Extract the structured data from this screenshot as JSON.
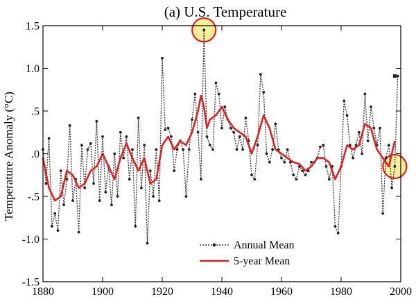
{
  "chart_data": {
    "type": "line",
    "title": "(a)  U.S. Temperature",
    "xlabel": "",
    "ylabel": "Temperature Anomaly (°C)",
    "xlim": [
      1880,
      2000
    ],
    "ylim": [
      -1.5,
      1.5
    ],
    "x_ticks": [
      1880,
      1900,
      1920,
      1940,
      1960,
      1980,
      2000
    ],
    "x_tick_labels": [
      "1880",
      "1900",
      "1920",
      "1940",
      "1960",
      "1980",
      "2000"
    ],
    "y_ticks": [
      1.5,
      1.0,
      0.5,
      0.0,
      -0.5,
      -1.0,
      -1.5
    ],
    "y_tick_labels": [
      "1.5",
      "1.0",
      ".5",
      ".0",
      "-.5",
      "-1.0",
      "-1.5"
    ],
    "legend_position": "bottom-center",
    "highlighted_years": [
      1934,
      1998
    ],
    "colors": {
      "annual": "#333333",
      "five_year": "#e02020",
      "highlight_fill": "#f5ee9a",
      "highlight_stroke": "#e02020"
    },
    "series": [
      {
        "name": "Annual Mean",
        "style": "dotted-with-markers",
        "x": [
          1880,
          1881,
          1882,
          1883,
          1884,
          1885,
          1886,
          1887,
          1888,
          1889,
          1890,
          1891,
          1892,
          1893,
          1894,
          1895,
          1896,
          1897,
          1898,
          1899,
          1900,
          1901,
          1902,
          1903,
          1904,
          1905,
          1906,
          1907,
          1908,
          1909,
          1910,
          1911,
          1912,
          1913,
          1914,
          1915,
          1916,
          1917,
          1918,
          1919,
          1920,
          1921,
          1922,
          1923,
          1924,
          1925,
          1926,
          1927,
          1928,
          1929,
          1930,
          1931,
          1932,
          1933,
          1934,
          1935,
          1936,
          1937,
          1938,
          1939,
          1940,
          1941,
          1942,
          1943,
          1944,
          1945,
          1946,
          1947,
          1948,
          1949,
          1950,
          1951,
          1952,
          1953,
          1954,
          1955,
          1956,
          1957,
          1958,
          1959,
          1960,
          1961,
          1962,
          1963,
          1964,
          1965,
          1966,
          1967,
          1968,
          1969,
          1970,
          1971,
          1972,
          1973,
          1974,
          1975,
          1976,
          1977,
          1978,
          1979,
          1980,
          1981,
          1982,
          1983,
          1984,
          1985,
          1986,
          1987,
          1988,
          1989,
          1990,
          1991,
          1992,
          1993,
          1994,
          1995,
          1996,
          1997,
          1998,
          1999
        ],
        "values": [
          0.05,
          -0.35,
          0.18,
          -0.85,
          -0.7,
          -0.9,
          -0.2,
          -0.6,
          -0.3,
          0.33,
          -0.55,
          -0.3,
          -0.92,
          0.1,
          -0.4,
          0.05,
          0.12,
          -0.35,
          0.38,
          -0.55,
          0.2,
          -0.45,
          -0.15,
          -0.6,
          0.0,
          -0.5,
          0.25,
          -0.05,
          0.2,
          -0.3,
          0.05,
          -0.85,
          0.42,
          -0.4,
          0.1,
          -1.05,
          -0.2,
          -0.5,
          0.05,
          -0.55,
          1.12,
          0.28,
          0.3,
          0.2,
          -0.2,
          0.05,
          0.15,
          0.05,
          -0.5,
          0.05,
          0.4,
          0.7,
          0.25,
          -0.3,
          1.45,
          0.2,
          0.1,
          0.05,
          0.83,
          0.7,
          0.3,
          0.55,
          0.4,
          0.3,
          0.25,
          0.05,
          0.2,
          0.05,
          0.42,
          0.15,
          -0.25,
          -0.3,
          0.1,
          0.93,
          0.72,
          0.0,
          -0.1,
          0.05,
          0.35,
          0.05,
          -0.05,
          -0.1,
          0.05,
          -0.1,
          -0.25,
          -0.3,
          -0.15,
          -0.2,
          -0.25,
          -0.2,
          -0.1,
          -0.1,
          -0.05,
          0.08,
          0.1,
          -0.15,
          -0.3,
          -0.15,
          -0.85,
          -0.93,
          -0.15,
          0.62,
          0.45,
          0.1,
          -0.05,
          0.1,
          0.25,
          0.0,
          0.7,
          0.15,
          0.55,
          0.3,
          0.1,
          0.3,
          -0.7,
          -0.05,
          0.1,
          -0.4,
          -0.15,
          0.91
        ],
        "marker_only_points": [
          {
            "x": 1998,
            "y": 0.91
          }
        ]
      },
      {
        "name": "5-year Mean",
        "style": "solid",
        "x": [
          1880,
          1882,
          1884,
          1886,
          1888,
          1890,
          1892,
          1894,
          1896,
          1898,
          1900,
          1902,
          1904,
          1906,
          1908,
          1910,
          1912,
          1914,
          1916,
          1918,
          1920,
          1922,
          1924,
          1926,
          1928,
          1930,
          1932,
          1933,
          1934,
          1935,
          1936,
          1938,
          1940,
          1942,
          1944,
          1946,
          1948,
          1950,
          1952,
          1954,
          1956,
          1958,
          1960,
          1962,
          1964,
          1966,
          1968,
          1970,
          1972,
          1974,
          1976,
          1978,
          1980,
          1982,
          1984,
          1986,
          1988,
          1990,
          1992,
          1994,
          1996,
          1998
        ],
        "values": [
          -0.05,
          -0.4,
          -0.55,
          -0.5,
          -0.2,
          -0.25,
          -0.4,
          -0.35,
          -0.2,
          -0.15,
          0.0,
          -0.15,
          -0.3,
          -0.05,
          0.12,
          -0.05,
          -0.2,
          -0.05,
          -0.35,
          -0.3,
          0.1,
          0.2,
          0.05,
          0.15,
          0.1,
          0.25,
          0.5,
          0.68,
          0.55,
          0.3,
          0.4,
          0.45,
          0.55,
          0.4,
          0.3,
          0.25,
          0.2,
          0.0,
          0.2,
          0.45,
          0.3,
          0.05,
          0.0,
          -0.05,
          -0.1,
          -0.12,
          -0.2,
          -0.15,
          -0.05,
          -0.05,
          -0.1,
          -0.3,
          -0.15,
          0.1,
          0.05,
          0.1,
          0.35,
          0.3,
          0.05,
          -0.05,
          -0.15,
          0.15
        ]
      }
    ]
  }
}
